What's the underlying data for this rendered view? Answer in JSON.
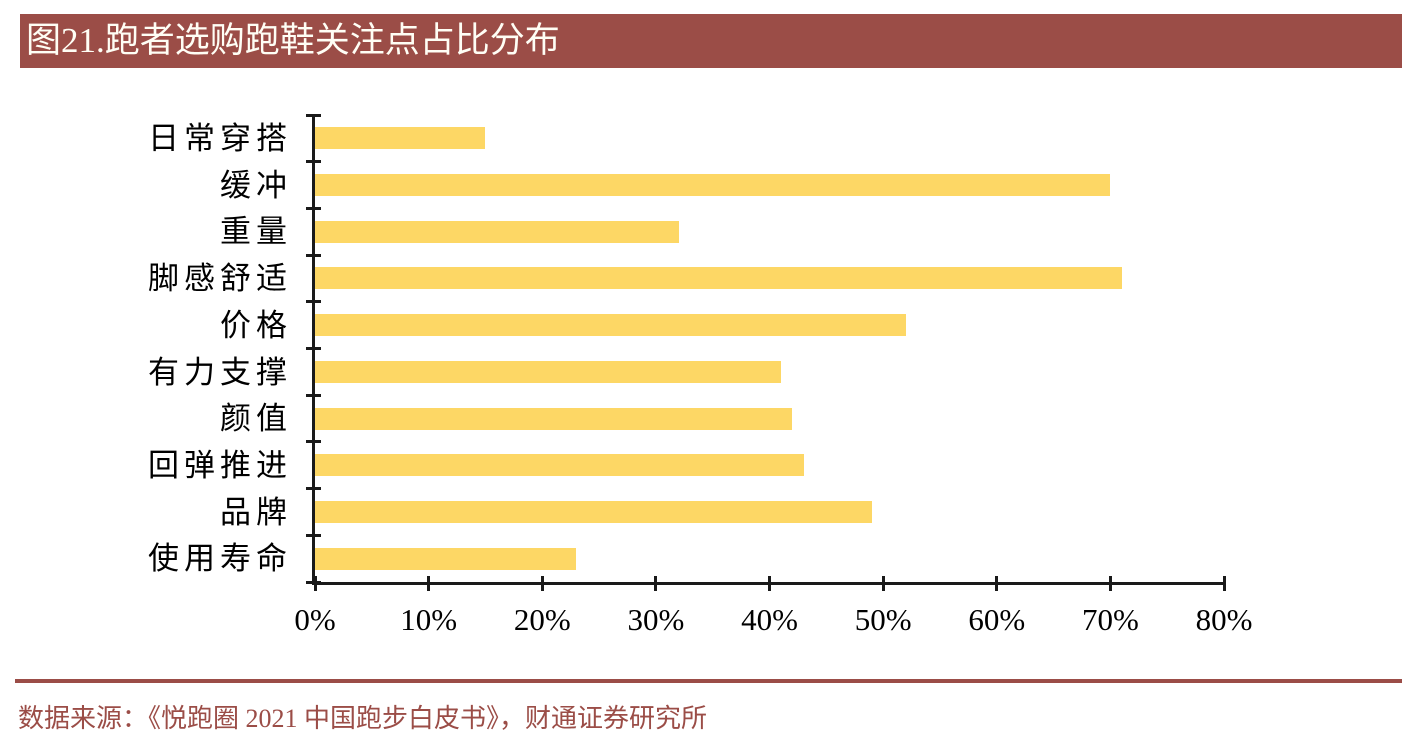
{
  "title": {
    "text": "图21.跑者选购跑鞋关注点占比分布"
  },
  "chart_data": {
    "type": "bar",
    "orientation": "horizontal",
    "title": "图21.跑者选购跑鞋关注点占比分布",
    "categories": [
      "日常穿搭",
      "缓冲",
      "重量",
      "脚感舒适",
      "价格",
      "有力支撑",
      "颜值",
      "回弹推进",
      "品牌",
      "使用寿命"
    ],
    "values": [
      15,
      70,
      32,
      71,
      52,
      41,
      42,
      43,
      49,
      23
    ],
    "unit": "%",
    "xlim": [
      0,
      80
    ],
    "x_tick_step": 10,
    "x_tick_labels": [
      "0%",
      "10%",
      "20%",
      "30%",
      "40%",
      "50%",
      "60%",
      "70%",
      "80%"
    ],
    "grid": false,
    "legend": false,
    "bar_color": "#FDD765"
  },
  "source": {
    "text": "数据来源：《悦跑圈 2021 中国跑步白皮书》，财通证券研究所"
  },
  "colors": {
    "accent_red": "#9B4D47",
    "bar_yellow": "#FDD765",
    "title_text": "#FFFEF5",
    "axis_black": "#1A1A1A"
  }
}
